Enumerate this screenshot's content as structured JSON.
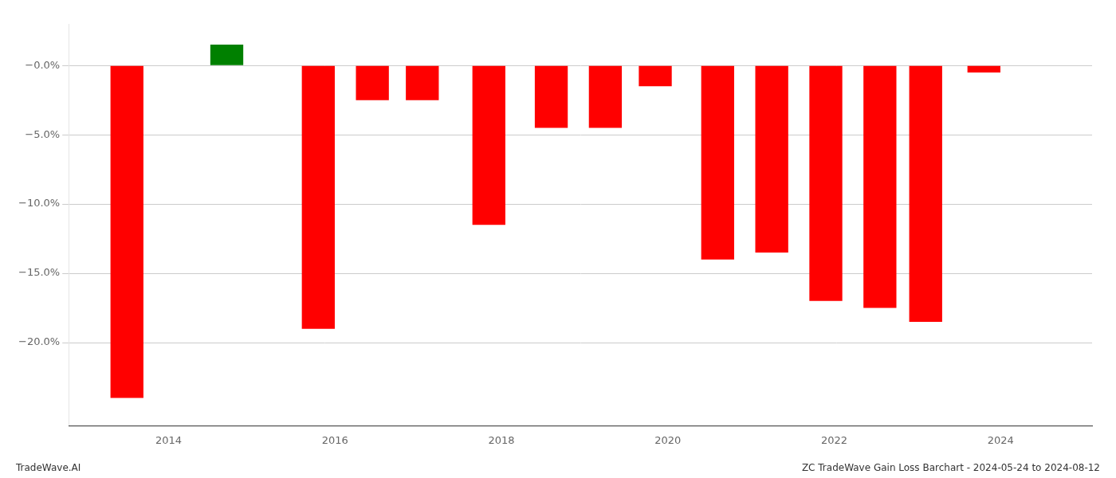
{
  "chart_data": {
    "type": "bar",
    "x": [
      2013.5,
      2014.7,
      2015.8,
      2016.45,
      2017.05,
      2017.85,
      2018.6,
      2019.25,
      2019.85,
      2020.6,
      2021.25,
      2021.9,
      2022.55,
      2023.1,
      2023.8
    ],
    "values": [
      -24.0,
      1.5,
      -19.0,
      -2.5,
      -2.5,
      -11.5,
      -4.5,
      -4.5,
      -1.5,
      -14.0,
      -13.5,
      -17.0,
      -17.5,
      -18.5,
      -0.5
    ],
    "colors": [
      "#ff0000",
      "#008000",
      "#ff0000",
      "#ff0000",
      "#ff0000",
      "#ff0000",
      "#ff0000",
      "#ff0000",
      "#ff0000",
      "#ff0000",
      "#ff0000",
      "#ff0000",
      "#ff0000",
      "#ff0000",
      "#ff0000"
    ],
    "xlim": [
      2012.8,
      2025.1
    ],
    "xticks": [
      2014,
      2016,
      2018,
      2020,
      2022,
      2024
    ],
    "ylim": [
      -26.0,
      3.0
    ],
    "yticks": [
      {
        "value": 0.0,
        "label": "−0.0%"
      },
      {
        "value": -5.0,
        "label": "−5.0%"
      },
      {
        "value": -10.0,
        "label": "−10.0%"
      },
      {
        "value": -15.0,
        "label": "−15.0%"
      },
      {
        "value": -20.0,
        "label": "−20.0%"
      }
    ],
    "grid": "y",
    "annotations": [
      "TradeWave.AI",
      "ZC TradeWave Gain Loss Barchart - 2024-05-24 to 2024-08-12"
    ]
  }
}
